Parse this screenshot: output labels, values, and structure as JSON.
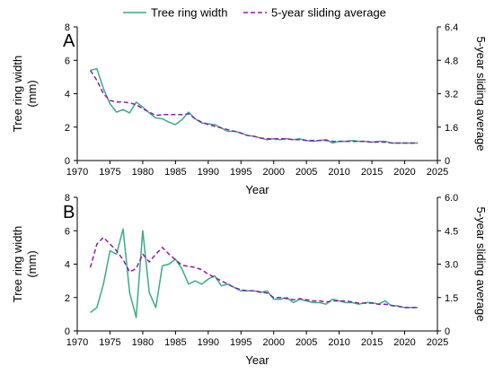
{
  "legend": {
    "items": [
      {
        "label": "Tree ring width",
        "color": "#3aaa88",
        "style": "solid"
      },
      {
        "label": "5-year sliding average",
        "color": "#8b1fa3",
        "style": "dashed"
      }
    ],
    "placement": "top-center"
  },
  "chart_data": [
    {
      "type": "line",
      "panel_label": "A",
      "xlabel": "Year",
      "ylabel_left": "Tree ring width\n(mm)",
      "ylabel_right": "5-year sliding average",
      "xlim": [
        1970,
        2025
      ],
      "xticks": [
        1970,
        1975,
        1980,
        1985,
        1990,
        1995,
        2000,
        2005,
        2010,
        2015,
        2020,
        2025
      ],
      "ylim_left": [
        0,
        8
      ],
      "yticks_left": [
        0,
        2,
        4,
        6,
        8
      ],
      "ylim_right": [
        0,
        6.4
      ],
      "yticks_right": [
        "0",
        "1.6",
        "3.2",
        "4.8",
        "6.4"
      ],
      "grid": false,
      "series": [
        {
          "name": "Tree ring width",
          "axis": "left",
          "x": [
            1972,
            1973,
            1974,
            1975,
            1976,
            1977,
            1978,
            1979,
            1980,
            1981,
            1982,
            1983,
            1984,
            1985,
            1986,
            1987,
            1988,
            1989,
            1990,
            1991,
            1992,
            1993,
            1994,
            1995,
            1996,
            1997,
            1998,
            1999,
            2000,
            2001,
            2002,
            2003,
            2004,
            2005,
            2006,
            2007,
            2008,
            2009,
            2010,
            2011,
            2012,
            2013,
            2014,
            2015,
            2016,
            2017,
            2018,
            2019,
            2020,
            2021,
            2022
          ],
          "y": [
            5.4,
            5.5,
            4.3,
            3.4,
            2.9,
            3.05,
            2.85,
            3.5,
            3.2,
            2.85,
            2.55,
            2.5,
            2.3,
            2.15,
            2.45,
            2.9,
            2.5,
            2.25,
            2.2,
            2.15,
            1.95,
            1.75,
            1.75,
            1.65,
            1.5,
            1.45,
            1.35,
            1.25,
            1.3,
            1.25,
            1.3,
            1.25,
            1.3,
            1.2,
            1.15,
            1.2,
            1.25,
            1.05,
            1.15,
            1.15,
            1.2,
            1.15,
            1.15,
            1.1,
            1.15,
            1.15,
            1.05,
            1.05,
            1.05,
            1.05,
            1.05
          ]
        },
        {
          "name": "5-year sliding average",
          "axis": "right",
          "x": [
            1972,
            1973,
            1974,
            1975,
            1976,
            1977,
            1978,
            1979,
            1980,
            1981,
            1982,
            1983,
            1984,
            1985,
            1986,
            1987,
            1988,
            1989,
            1990,
            1991,
            1992,
            1993,
            1994,
            1995,
            1996,
            1997,
            1998,
            1999,
            2000,
            2001,
            2002,
            2003,
            2004,
            2005,
            2006,
            2007,
            2008,
            2009,
            2010,
            2011,
            2012,
            2013,
            2014,
            2015,
            2016,
            2017,
            2018,
            2019,
            2020,
            2021,
            2022
          ],
          "y": [
            4.32,
            3.84,
            3.2,
            2.88,
            2.8,
            2.8,
            2.76,
            2.68,
            2.48,
            2.32,
            2.16,
            2.2,
            2.2,
            2.2,
            2.2,
            2.24,
            2.0,
            1.84,
            1.72,
            1.64,
            1.56,
            1.48,
            1.4,
            1.32,
            1.2,
            1.16,
            1.08,
            1.04,
            1.04,
            1.04,
            1.04,
            1.0,
            1.0,
            0.96,
            0.96,
            0.96,
            0.96,
            0.92,
            0.92,
            0.92,
            0.92,
            0.92,
            0.92,
            0.88,
            0.88,
            0.88,
            0.84,
            0.84,
            0.84,
            0.84,
            0.84
          ]
        }
      ]
    },
    {
      "type": "line",
      "panel_label": "B",
      "xlabel": "Year",
      "ylabel_left": "Tree ring width\n(mm)",
      "ylabel_right": "5-year sliding average",
      "xlim": [
        1970,
        2025
      ],
      "xticks": [
        1970,
        1975,
        1980,
        1985,
        1990,
        1995,
        2000,
        2005,
        2010,
        2015,
        2020,
        2025
      ],
      "ylim_left": [
        0,
        8
      ],
      "yticks_left": [
        0,
        2,
        4,
        6,
        8
      ],
      "ylim_right": [
        0,
        6.0
      ],
      "yticks_right": [
        "0",
        "1.5",
        "3.0",
        "4.5",
        "6.0"
      ],
      "grid": false,
      "series": [
        {
          "name": "Tree ring width",
          "axis": "left",
          "x": [
            1972,
            1973,
            1974,
            1975,
            1976,
            1977,
            1978,
            1979,
            1980,
            1981,
            1982,
            1983,
            1984,
            1985,
            1986,
            1987,
            1988,
            1989,
            1990,
            1991,
            1992,
            1993,
            1994,
            1995,
            1996,
            1997,
            1998,
            1999,
            2000,
            2001,
            2002,
            2003,
            2004,
            2005,
            2006,
            2007,
            2008,
            2009,
            2010,
            2011,
            2012,
            2013,
            2014,
            2015,
            2016,
            2017,
            2018,
            2019,
            2020,
            2021,
            2022
          ],
          "y": [
            1.1,
            1.4,
            2.8,
            4.8,
            4.6,
            6.1,
            2.3,
            0.8,
            6.0,
            2.3,
            1.4,
            3.9,
            4.0,
            4.3,
            3.7,
            2.8,
            3.0,
            2.8,
            3.1,
            3.3,
            2.7,
            2.8,
            2.6,
            2.4,
            2.4,
            2.4,
            2.3,
            2.4,
            1.9,
            1.9,
            2.0,
            1.7,
            1.9,
            1.8,
            1.7,
            1.7,
            1.6,
            1.9,
            1.8,
            1.7,
            1.7,
            1.6,
            1.7,
            1.7,
            1.6,
            1.8,
            1.5,
            1.5,
            1.4,
            1.4,
            1.4
          ]
        },
        {
          "name": "5-year sliding average",
          "axis": "right",
          "x": [
            1972,
            1973,
            1974,
            1975,
            1976,
            1977,
            1978,
            1979,
            1980,
            1981,
            1982,
            1983,
            1984,
            1985,
            1986,
            1987,
            1988,
            1989,
            1990,
            1991,
            1992,
            1993,
            1994,
            1995,
            1996,
            1997,
            1998,
            1999,
            2000,
            2001,
            2002,
            2003,
            2004,
            2005,
            2006,
            2007,
            2008,
            2009,
            2010,
            2011,
            2012,
            2013,
            2014,
            2015,
            2016,
            2017,
            2018,
            2019,
            2020,
            2021,
            2022
          ],
          "y": [
            2.85,
            3.9,
            4.2,
            3.9,
            3.6,
            3.2,
            2.65,
            2.8,
            3.45,
            3.1,
            3.45,
            3.75,
            3.45,
            3.2,
            2.95,
            2.9,
            2.85,
            2.75,
            2.55,
            2.4,
            2.25,
            2.1,
            1.95,
            1.85,
            1.8,
            1.8,
            1.75,
            1.7,
            1.5,
            1.5,
            1.45,
            1.4,
            1.45,
            1.4,
            1.35,
            1.35,
            1.3,
            1.35,
            1.35,
            1.35,
            1.3,
            1.25,
            1.25,
            1.25,
            1.2,
            1.2,
            1.15,
            1.1,
            1.05,
            1.05,
            1.05
          ]
        }
      ]
    }
  ]
}
